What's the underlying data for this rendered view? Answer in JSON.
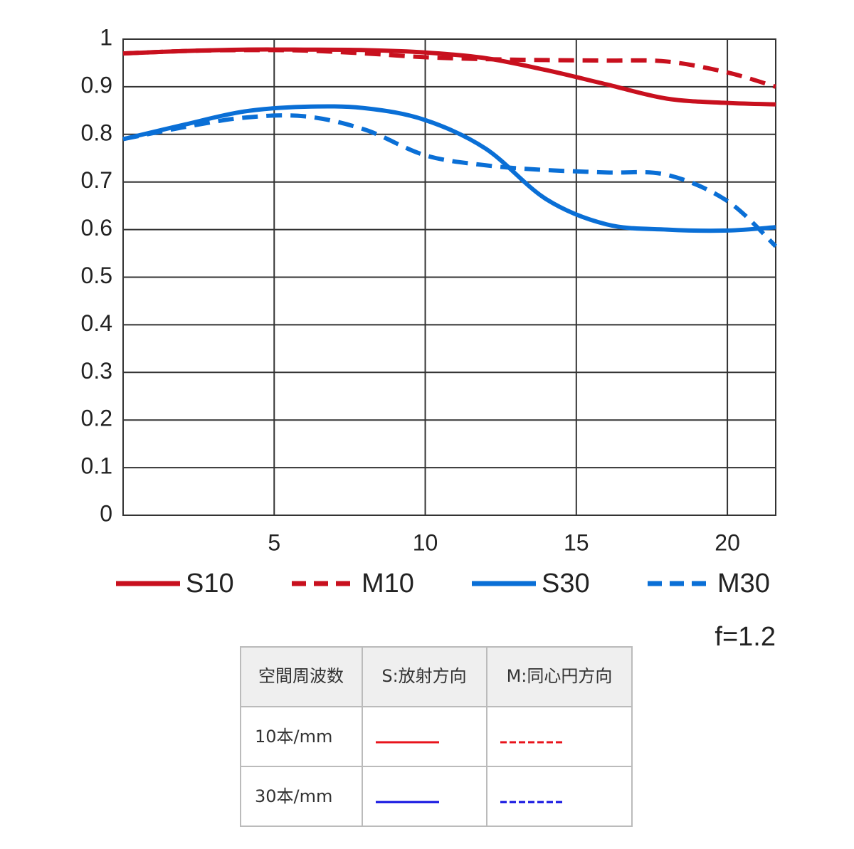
{
  "chart_data": {
    "type": "line",
    "x": [
      0,
      2,
      4,
      6,
      8,
      10,
      12,
      14,
      16,
      18,
      20,
      21.6
    ],
    "series": [
      {
        "name": "S10",
        "color": "#c8101e",
        "style": "solid",
        "values": [
          0.97,
          0.975,
          0.978,
          0.978,
          0.977,
          0.972,
          0.96,
          0.935,
          0.905,
          0.875,
          0.866,
          0.863
        ]
      },
      {
        "name": "M10",
        "color": "#c8101e",
        "style": "dashed",
        "values": [
          0.97,
          0.975,
          0.977,
          0.976,
          0.97,
          0.962,
          0.958,
          0.956,
          0.955,
          0.953,
          0.93,
          0.9
        ]
      },
      {
        "name": "S30",
        "color": "#0a6fd6",
        "style": "solid",
        "values": [
          0.79,
          0.82,
          0.848,
          0.858,
          0.855,
          0.83,
          0.77,
          0.664,
          0.611,
          0.6,
          0.598,
          0.605
        ]
      },
      {
        "name": "M30",
        "color": "#0a6fd6",
        "style": "dashed",
        "values": [
          0.79,
          0.815,
          0.835,
          0.838,
          0.81,
          0.756,
          0.735,
          0.725,
          0.72,
          0.715,
          0.66,
          0.565
        ]
      }
    ],
    "xlim": [
      0,
      21.6
    ],
    "xticks": [
      5,
      10,
      15,
      20
    ],
    "ylim": [
      0,
      1
    ],
    "yticks": [
      0,
      0.1,
      0.2,
      0.3,
      0.4,
      0.5,
      0.6,
      0.7,
      0.8,
      0.9,
      1
    ],
    "grid": true,
    "annotation": "f=1.2"
  },
  "table": {
    "header": [
      "空間周波数",
      "S:放射方向",
      "M:同心円方向"
    ],
    "rows": [
      "10本/mm",
      "30本/mm"
    ]
  }
}
